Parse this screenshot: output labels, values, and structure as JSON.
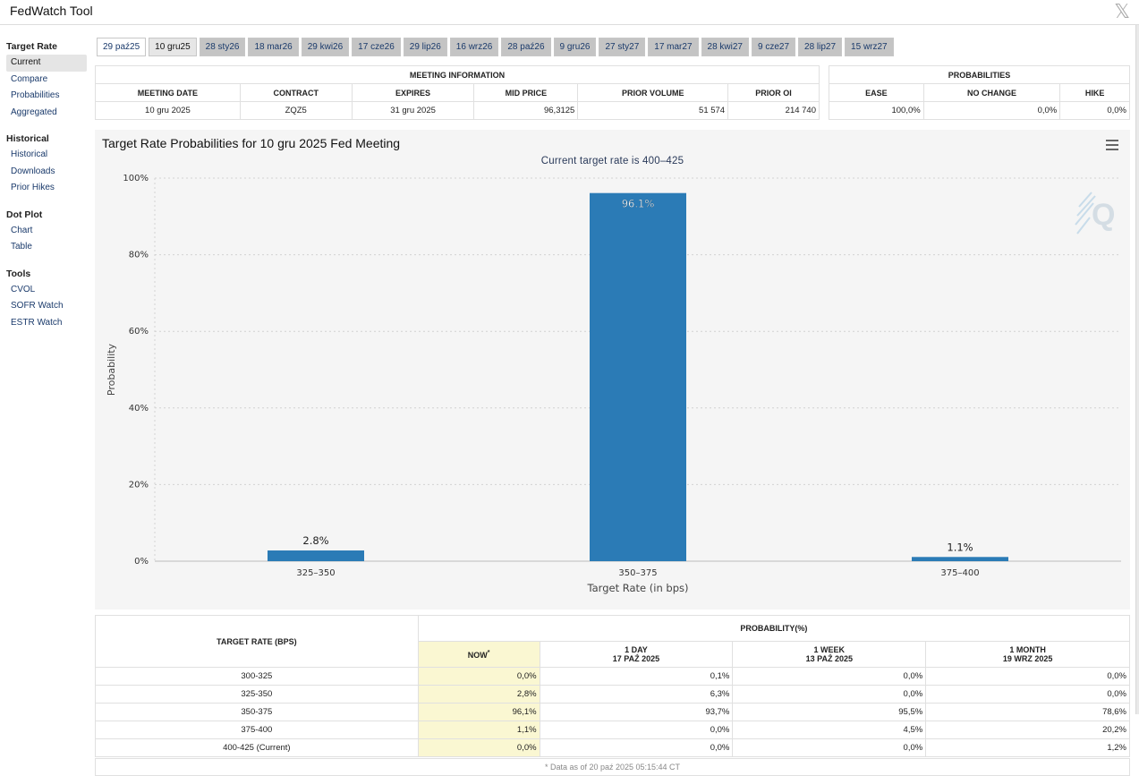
{
  "app": {
    "title": "FedWatch Tool",
    "close_icon": "x-logo-icon"
  },
  "sidebar": {
    "sections": [
      {
        "title": "Target Rate",
        "items": [
          "Current",
          "Compare",
          "Probabilities",
          "Aggregated"
        ]
      },
      {
        "title": "Historical",
        "items": [
          "Historical",
          "Downloads",
          "Prior Hikes"
        ]
      },
      {
        "title": "Dot Plot",
        "items": [
          "Chart",
          "Table"
        ]
      },
      {
        "title": "Tools",
        "items": [
          "CVOL",
          "SOFR Watch",
          "ESTR Watch"
        ]
      }
    ],
    "active": "Current"
  },
  "tabs": [
    "29 paź25",
    "10 gru25",
    "28 sty26",
    "18 mar26",
    "29 kwi26",
    "17 cze26",
    "29 lip26",
    "16 wrz26",
    "28 paź26",
    "9 gru26",
    "27 sty27",
    "17 mar27",
    "28 kwi27",
    "9 cze27",
    "28 lip27",
    "15 wrz27"
  ],
  "selected_tab": "10 gru25",
  "meeting_info": {
    "header": "MEETING INFORMATION",
    "columns": [
      "MEETING DATE",
      "CONTRACT",
      "EXPIRES",
      "MID PRICE",
      "PRIOR VOLUME",
      "PRIOR OI"
    ],
    "values": [
      "10 gru 2025",
      "ZQZ5",
      "31 gru 2025",
      "96,3125",
      "51 574",
      "214 740"
    ]
  },
  "probabilities": {
    "header": "PROBABILITIES",
    "columns": [
      "EASE",
      "NO CHANGE",
      "HIKE"
    ],
    "values": [
      "100,0%",
      "0,0%",
      "0,0%"
    ]
  },
  "chart": {
    "menu_icon": "hamburger-menu-icon",
    "watermark_icon": "quikstrike-q-logo-icon"
  },
  "chart_data": {
    "type": "bar",
    "title": "Target Rate Probabilities for 10 gru 2025 Fed Meeting",
    "subtitle": "Current target rate is 400–425",
    "xlabel": "Target Rate (in bps)",
    "ylabel": "Probability",
    "categories": [
      "325–350",
      "350–375",
      "375–400"
    ],
    "values": [
      2.8,
      96.1,
      1.1
    ],
    "data_labels": [
      "2.8%",
      "96.1%",
      "1.1%"
    ],
    "ylim": [
      0,
      100
    ],
    "yticks": [
      "0%",
      "20%",
      "40%",
      "60%",
      "80%",
      "100%"
    ],
    "grid": true,
    "color": "#2b7bb6"
  },
  "prob_table": {
    "col_target": "TARGET RATE (BPS)",
    "col_prob": "PROBABILITY(%)",
    "sub_cols": [
      {
        "line1": "NOW",
        "mark": "*",
        "line2": ""
      },
      {
        "line1": "1 DAY",
        "line2": "17 PAŹ 2025"
      },
      {
        "line1": "1 WEEK",
        "line2": "13 PAŹ 2025"
      },
      {
        "line1": "1 MONTH",
        "line2": "19 WRZ 2025"
      }
    ],
    "rows": [
      {
        "rate": "300-325",
        "vals": [
          "0,0%",
          "0,1%",
          "0,0%",
          "0,0%"
        ]
      },
      {
        "rate": "325-350",
        "vals": [
          "2,8%",
          "6,3%",
          "0,0%",
          "0,0%"
        ]
      },
      {
        "rate": "350-375",
        "vals": [
          "96,1%",
          "93,7%",
          "95,5%",
          "78,6%"
        ]
      },
      {
        "rate": "375-400",
        "vals": [
          "1,1%",
          "0,0%",
          "4,5%",
          "20,2%"
        ]
      },
      {
        "rate": "400-425 (Current)",
        "vals": [
          "0,0%",
          "0,0%",
          "0,0%",
          "1,2%"
        ]
      }
    ],
    "footnote": "* Data as of 20 paź 2025 05:15:44 CT"
  }
}
